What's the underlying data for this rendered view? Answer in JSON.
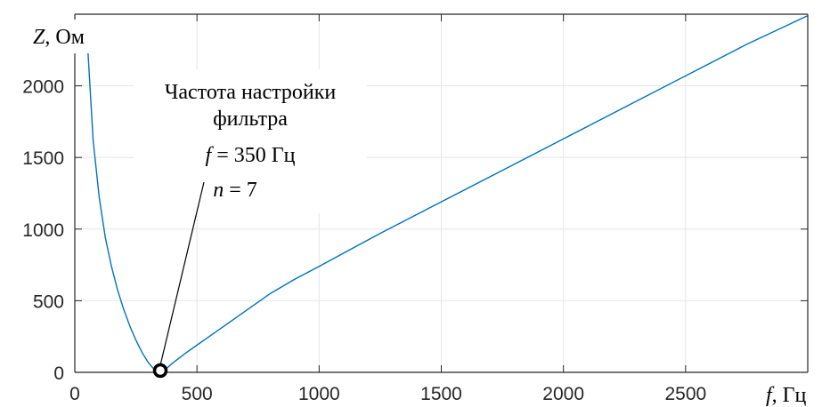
{
  "chart_data": {
    "type": "line",
    "xlabel": {
      "symbol": "f",
      "unit": ", Гц"
    },
    "ylabel": {
      "symbol": "Z",
      "unit": ", Ом"
    },
    "xlim": [
      0,
      3000
    ],
    "ylim": [
      0,
      2500
    ],
    "x_ticks": [
      0,
      500,
      1000,
      1500,
      2000,
      2500
    ],
    "y_ticks": [
      0,
      500,
      1000,
      1500,
      2000
    ],
    "grid": true,
    "colors": {
      "line": "#0072BD",
      "axis": "#262626",
      "grid": "#e6e6e6"
    },
    "series": [
      {
        "x": [
          50,
          75,
          100,
          125,
          150,
          175,
          200,
          225,
          250,
          275,
          300,
          320,
          335,
          345,
          350,
          355,
          365,
          380,
          400,
          450,
          500,
          600,
          700,
          800,
          900,
          1000,
          1250,
          1500,
          1750,
          2000,
          2250,
          2500,
          2750,
          3000
        ],
        "values": [
          2350,
          1620,
          1220,
          940,
          740,
          575,
          440,
          325,
          225,
          140,
          70,
          30,
          10,
          3,
          0,
          4,
          14,
          34,
          64,
          130,
          190,
          310,
          430,
          550,
          650,
          740,
          970,
          1190,
          1410,
          1630,
          1850,
          2070,
          2290,
          2490
        ]
      }
    ],
    "marker": {
      "x": 350,
      "y": 0,
      "shape": "circle"
    },
    "annotation": {
      "lines": [
        "Частота настройки",
        "фильтра"
      ],
      "freq": {
        "symbol": "f",
        "text": " = 350 Гц"
      },
      "order": {
        "symbol": "n",
        "text": " = 7"
      }
    }
  }
}
